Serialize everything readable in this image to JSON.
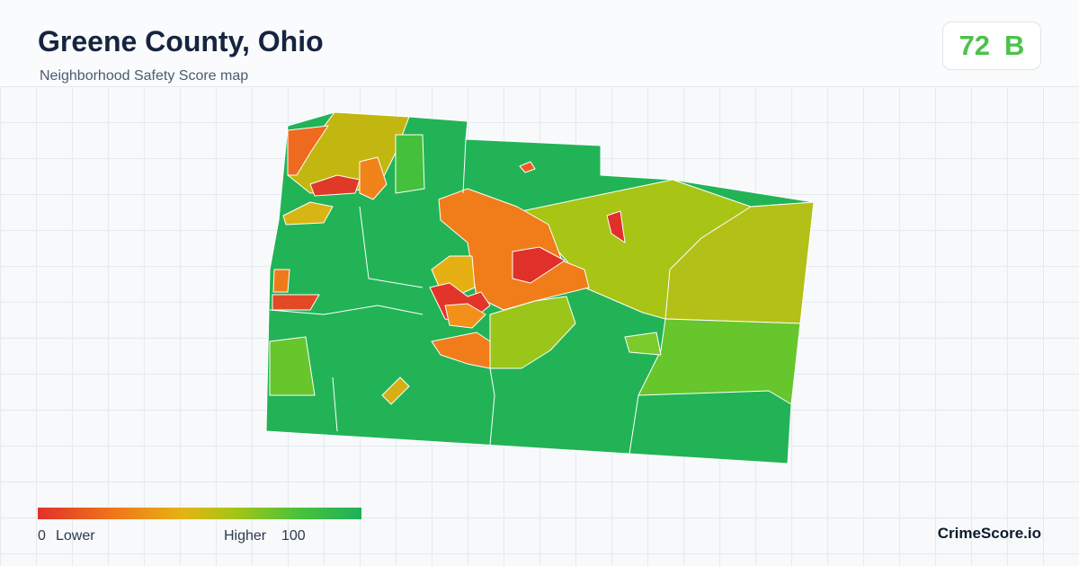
{
  "header": {
    "title": "Greene County, Ohio",
    "subtitle": "Neighborhood Safety Score map"
  },
  "score": {
    "value": 72,
    "grade": "B"
  },
  "legend": {
    "min": 0,
    "min_label": "Lower",
    "max_label": "Higher",
    "max": 100
  },
  "brand": "CrimeScore.io"
}
